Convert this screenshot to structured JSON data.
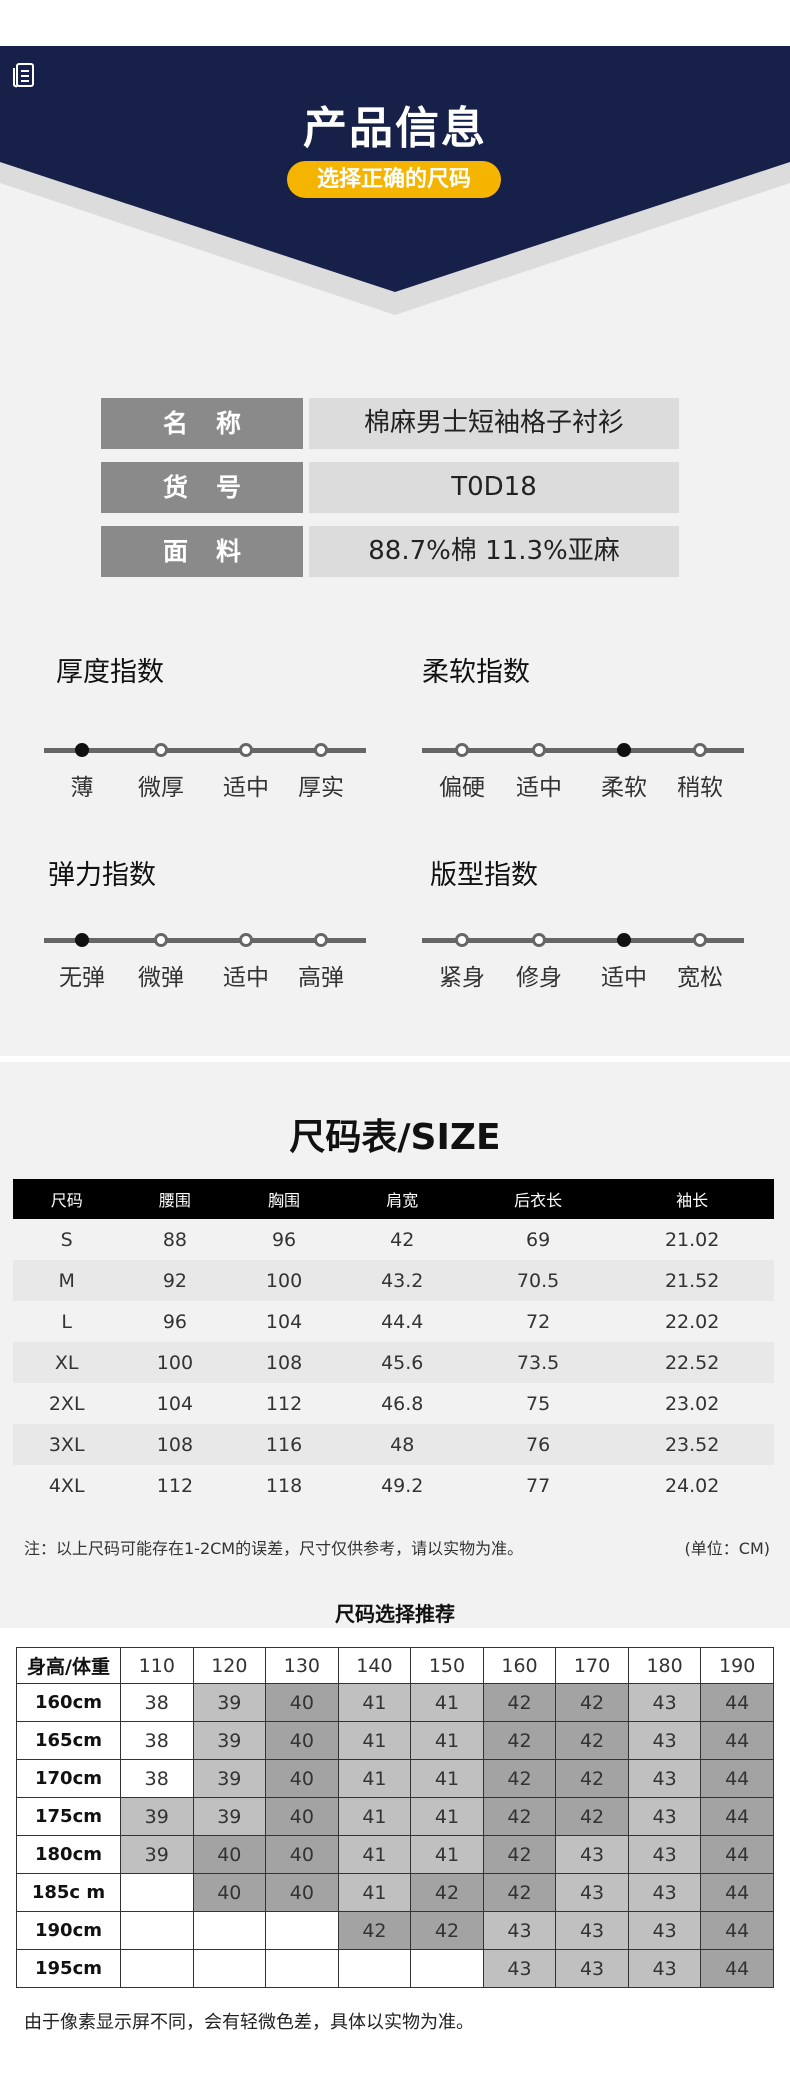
{
  "header": {
    "title": "产品信息",
    "badge": "选择正确的尺码",
    "icon": "book-icon",
    "colors": {
      "navy": "#172048",
      "badge": "#f4b400"
    }
  },
  "info": [
    {
      "label": "名称",
      "value": "棉麻男士短袖格子衬衫"
    },
    {
      "label": "货号",
      "value": "T0D18"
    },
    {
      "label": "面料",
      "value": "88.7%棉  11.3%亚麻"
    }
  ],
  "indices": [
    {
      "title": "厚度指数",
      "options": [
        "薄",
        "微厚",
        "适中",
        "厚实"
      ],
      "selected": 0
    },
    {
      "title": "柔软指数",
      "options": [
        "偏硬",
        "适中",
        "柔软",
        "稍软"
      ],
      "selected": 2
    },
    {
      "title": "弹力指数",
      "options": [
        "无弹",
        "微弹",
        "适中",
        "高弹"
      ],
      "selected": 0
    },
    {
      "title": "版型指数",
      "options": [
        "紧身",
        "修身",
        "适中",
        "宽松"
      ],
      "selected": 2
    }
  ],
  "size_table": {
    "title": "尺码表/SIZE",
    "headers": [
      "尺码",
      "腰围",
      "胸围",
      "肩宽",
      "后衣长",
      "袖长"
    ],
    "rows": [
      [
        "S",
        "88",
        "96",
        "42",
        "69",
        "21.02"
      ],
      [
        "M",
        "92",
        "100",
        "43.2",
        "70.5",
        "21.52"
      ],
      [
        "L",
        "96",
        "104",
        "44.4",
        "72",
        "22.02"
      ],
      [
        "XL",
        "100",
        "108",
        "45.6",
        "73.5",
        "22.52"
      ],
      [
        "2XL",
        "104",
        "112",
        "46.8",
        "75",
        "23.02"
      ],
      [
        "3XL",
        "108",
        "116",
        "48",
        "76",
        "23.52"
      ],
      [
        "4XL",
        "112",
        "118",
        "49.2",
        "77",
        "24.02"
      ]
    ],
    "note": "注：以上尺码可能存在1-2CM的误差，尺寸仅供参考，请以实物为准。",
    "unit": "(单位：CM)"
  },
  "recommend": {
    "title": "尺码选择推荐",
    "corner": "身高/体重",
    "weights": [
      "110",
      "120",
      "130",
      "140",
      "150",
      "160",
      "170",
      "180",
      "190"
    ],
    "rows": [
      {
        "height": "160cm",
        "sizes": [
          "38",
          "39",
          "40",
          "41",
          "41",
          "42",
          "42",
          "43",
          "44"
        ]
      },
      {
        "height": "165cm",
        "sizes": [
          "38",
          "39",
          "40",
          "41",
          "41",
          "42",
          "42",
          "43",
          "44"
        ]
      },
      {
        "height": "170cm",
        "sizes": [
          "38",
          "39",
          "40",
          "41",
          "41",
          "42",
          "42",
          "43",
          "44"
        ]
      },
      {
        "height": "175cm",
        "sizes": [
          "39",
          "39",
          "40",
          "41",
          "41",
          "42",
          "42",
          "43",
          "44"
        ]
      },
      {
        "height": "180cm",
        "sizes": [
          "39",
          "40",
          "40",
          "41",
          "41",
          "42",
          "43",
          "43",
          "44"
        ]
      },
      {
        "height": "185c m",
        "sizes": [
          "",
          "40",
          "40",
          "41",
          "42",
          "42",
          "43",
          "43",
          "44"
        ]
      },
      {
        "height": "190cm",
        "sizes": [
          "",
          "",
          "",
          "42",
          "42",
          "43",
          "43",
          "43",
          "44"
        ]
      },
      {
        "height": "195cm",
        "sizes": [
          "",
          "",
          "",
          "",
          "",
          "43",
          "43",
          "43",
          "44"
        ]
      }
    ],
    "shades": {
      "38": "#ffffff",
      "39": "#c0c0c0",
      "40": "#a3a3a3",
      "41": "#c0c0c0",
      "42": "#a3a3a3",
      "43": "#c0c0c0",
      "44": "#a3a3a3"
    },
    "footnote": "由于像素显示屏不同，会有轻微色差，具体以实物为准。"
  }
}
